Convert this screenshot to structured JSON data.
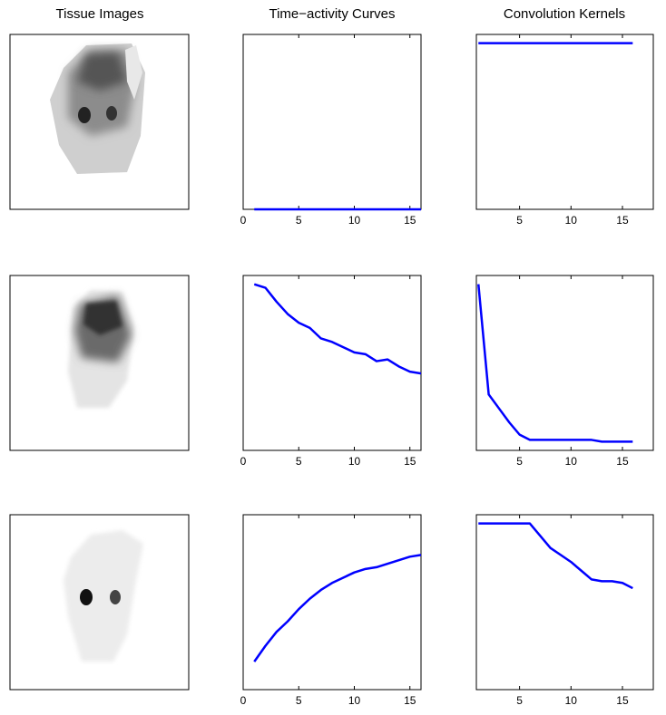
{
  "column_titles": [
    "Tissue Images",
    "Time−activity Curves",
    "Convolution Kernels"
  ],
  "chart_data": [
    {
      "type": "line",
      "x": [
        1,
        2,
        3,
        4,
        5,
        6,
        7,
        8,
        9,
        10,
        11,
        12,
        13,
        14,
        15,
        16
      ],
      "xlim": [
        0,
        16
      ],
      "xticks": [
        0,
        5,
        10,
        15
      ],
      "ylim": [
        0,
        1
      ],
      "series": [
        {
          "color": "#0000ff",
          "values": [
            0,
            0,
            0,
            0,
            0,
            0,
            0,
            0,
            0,
            0,
            0,
            0,
            0,
            0,
            0,
            0
          ]
        }
      ]
    },
    {
      "type": "line",
      "x": [
        1,
        2,
        3,
        4,
        5,
        6,
        7,
        8,
        9,
        10,
        11,
        12,
        13,
        14,
        15,
        16
      ],
      "xlim": [
        0,
        16
      ],
      "xticks": [
        0,
        5,
        10,
        15
      ],
      "ylim": [
        0,
        1
      ],
      "series": [
        {
          "color": "#0000ff",
          "values": [
            0.95,
            0.93,
            0.85,
            0.78,
            0.73,
            0.7,
            0.64,
            0.62,
            0.59,
            0.56,
            0.55,
            0.51,
            0.52,
            0.48,
            0.45,
            0.44
          ]
        }
      ]
    },
    {
      "type": "line",
      "x": [
        1,
        2,
        3,
        4,
        5,
        6,
        7,
        8,
        9,
        10,
        11,
        12,
        13,
        14,
        15,
        16
      ],
      "xlim": [
        0,
        16
      ],
      "xticks": [
        0,
        5,
        10,
        15
      ],
      "ylim": [
        0,
        1
      ],
      "series": [
        {
          "color": "#0000ff",
          "values": [
            0.16,
            0.25,
            0.33,
            0.39,
            0.46,
            0.52,
            0.57,
            0.61,
            0.64,
            0.67,
            0.69,
            0.7,
            0.72,
            0.74,
            0.76,
            0.77
          ]
        }
      ]
    },
    {
      "type": "line",
      "x": [
        1,
        2,
        3,
        4,
        5,
        6,
        7,
        8,
        9,
        10,
        11,
        12,
        13,
        14,
        15,
        16
      ],
      "xlim": [
        0.8,
        18
      ],
      "xticks": [
        5,
        10,
        15
      ],
      "ylim": [
        0,
        1
      ],
      "series": [
        {
          "color": "#0000ff",
          "values": [
            0.95,
            0.95,
            0.95,
            0.95,
            0.95,
            0.95,
            0.95,
            0.95,
            0.95,
            0.95,
            0.95,
            0.95,
            0.95,
            0.95,
            0.95,
            0.95
          ]
        }
      ]
    },
    {
      "type": "line",
      "x": [
        1,
        2,
        3,
        4,
        5,
        6,
        7,
        8,
        9,
        10,
        11,
        12,
        13,
        14,
        15,
        16
      ],
      "xlim": [
        0.8,
        18
      ],
      "xticks": [
        5,
        10,
        15
      ],
      "ylim": [
        0,
        1
      ],
      "series": [
        {
          "color": "#0000ff",
          "values": [
            0.95,
            0.32,
            0.24,
            0.16,
            0.09,
            0.06,
            0.06,
            0.06,
            0.06,
            0.06,
            0.06,
            0.06,
            0.05,
            0.05,
            0.05,
            0.05
          ]
        }
      ]
    },
    {
      "type": "line",
      "x": [
        1,
        2,
        3,
        4,
        5,
        6,
        7,
        8,
        9,
        10,
        11,
        12,
        13,
        14,
        15,
        16
      ],
      "xlim": [
        0.8,
        18
      ],
      "xticks": [
        5,
        10,
        15
      ],
      "ylim": [
        0,
        1
      ],
      "series": [
        {
          "color": "#0000ff",
          "values": [
            0.95,
            0.95,
            0.95,
            0.95,
            0.95,
            0.95,
            0.88,
            0.81,
            0.77,
            0.73,
            0.68,
            0.63,
            0.62,
            0.62,
            0.61,
            0.58
          ]
        }
      ]
    }
  ]
}
